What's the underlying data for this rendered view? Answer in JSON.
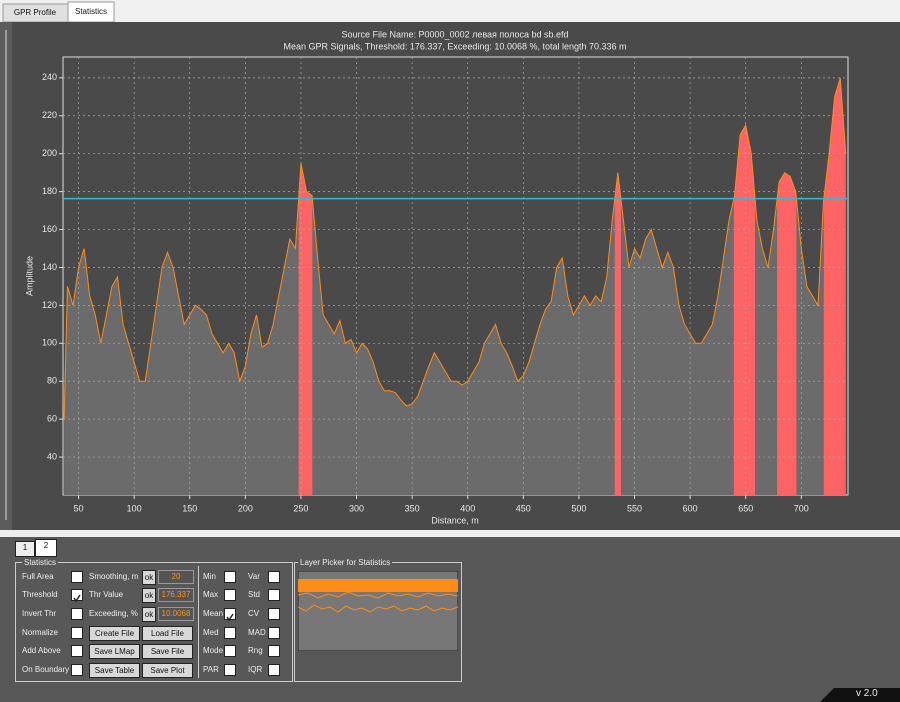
{
  "tabs": [
    "GPR Profile",
    "Statistics"
  ],
  "chart_data": {
    "type": "area",
    "title": "Source File Name: P0000_0002 левая полоса bd sb.efd",
    "subtitle": "Mean GPR Signals, Threshold: 176.337, Exceeding: 10.0068 %, total length 70.336 m",
    "x_label": "Distance, m",
    "y_label": "Amplitude",
    "x": [
      37,
      40,
      45,
      50,
      55,
      60,
      65,
      70,
      75,
      80,
      85,
      90,
      95,
      100,
      105,
      110,
      115,
      120,
      125,
      130,
      135,
      140,
      145,
      150,
      155,
      160,
      165,
      170,
      175,
      180,
      185,
      190,
      195,
      200,
      205,
      210,
      215,
      220,
      225,
      230,
      235,
      240,
      245,
      250,
      255,
      260,
      265,
      270,
      275,
      280,
      285,
      290,
      295,
      300,
      305,
      310,
      315,
      320,
      325,
      330,
      335,
      340,
      345,
      350,
      355,
      360,
      365,
      370,
      375,
      380,
      385,
      390,
      395,
      400,
      405,
      410,
      415,
      420,
      425,
      430,
      435,
      440,
      445,
      450,
      455,
      460,
      465,
      470,
      475,
      480,
      485,
      490,
      495,
      500,
      505,
      510,
      515,
      520,
      525,
      530,
      535,
      540,
      545,
      550,
      555,
      560,
      565,
      570,
      575,
      580,
      585,
      590,
      595,
      600,
      605,
      610,
      615,
      620,
      625,
      630,
      635,
      640,
      645,
      650,
      655,
      660,
      665,
      670,
      675,
      680,
      685,
      690,
      695,
      700,
      705,
      710,
      715,
      720,
      725,
      730,
      735,
      740
    ],
    "series": [
      {
        "color": "#ff8c1a",
        "values": [
          60,
          130,
          120,
          140,
          150,
          125,
          115,
          100,
          115,
          130,
          135,
          110,
          100,
          90,
          80,
          80,
          100,
          120,
          140,
          148,
          140,
          125,
          110,
          115,
          120,
          118,
          115,
          105,
          100,
          95,
          100,
          95,
          80,
          88,
          105,
          115,
          98,
          100,
          110,
          125,
          140,
          155,
          150,
          195,
          180,
          178,
          145,
          115,
          110,
          105,
          112,
          100,
          102,
          95,
          100,
          97,
          90,
          80,
          75,
          75,
          74,
          70,
          67,
          68,
          72,
          80,
          88,
          95,
          90,
          85,
          80,
          80,
          78,
          80,
          85,
          90,
          100,
          105,
          110,
          100,
          95,
          88,
          80,
          83,
          90,
          100,
          110,
          118,
          122,
          140,
          145,
          125,
          115,
          120,
          125,
          120,
          125,
          122,
          135,
          165,
          190,
          165,
          140,
          150,
          145,
          155,
          160,
          150,
          140,
          148,
          140,
          120,
          110,
          105,
          100,
          100,
          105,
          110,
          125,
          145,
          165,
          178,
          210,
          215,
          200,
          165,
          150,
          140,
          160,
          185,
          190,
          188,
          180,
          150,
          130,
          125,
          120,
          175,
          200,
          230,
          240,
          200
        ]
      }
    ],
    "threshold": 176.337,
    "threshold_color": "#3ab8c8",
    "exceed_color": "#ff6464",
    "fill_color": "#6b6b6b",
    "xlim": [
      36,
      742
    ],
    "ylim": [
      20,
      251
    ],
    "xticks": [
      50,
      100,
      150,
      200,
      250,
      300,
      350,
      400,
      450,
      500,
      550,
      600,
      650,
      700
    ],
    "yticks": [
      40,
      60,
      80,
      100,
      120,
      140,
      160,
      180,
      200,
      220,
      240
    ],
    "grid": true
  },
  "panel": {
    "tabs": [
      "1",
      "2"
    ],
    "group": "Statistics",
    "options": [
      {
        "label": "Full Area",
        "checked": false
      },
      {
        "label": "Threshold",
        "checked": true
      },
      {
        "label": "Invert Thr",
        "checked": false
      },
      {
        "label": "Normalize",
        "checked": false
      },
      {
        "label": "Add Above",
        "checked": false
      },
      {
        "label": "On Boundary",
        "checked": false
      }
    ],
    "fields": [
      {
        "label": "Smoothing, m",
        "button": "ok",
        "value": "20"
      },
      {
        "label": "Thr Value",
        "button": "ok",
        "value": "176.337"
      },
      {
        "label": "Exceeding, %",
        "button": "ok",
        "value": "10.0068"
      }
    ],
    "buttons": [
      "Create File",
      "Load File",
      "Save LMap",
      "Save File",
      "Save Table",
      "Save Plot"
    ],
    "stats": [
      {
        "label": "Min",
        "checked": false
      },
      {
        "label": "Max",
        "checked": false
      },
      {
        "label": "Mean",
        "checked": true
      },
      {
        "label": "Med",
        "checked": false
      },
      {
        "label": "Mode",
        "checked": false
      },
      {
        "label": "PAR",
        "checked": false
      }
    ],
    "stats2": [
      {
        "label": "Var",
        "checked": false
      },
      {
        "label": "Std",
        "checked": false
      },
      {
        "label": "CV",
        "checked": false
      },
      {
        "label": "MAD",
        "checked": false
      },
      {
        "label": "Rng",
        "checked": false
      },
      {
        "label": "IQR",
        "checked": false
      }
    ],
    "layer_picker": "Layer Picker for Statistics"
  },
  "version": "v 2.0"
}
